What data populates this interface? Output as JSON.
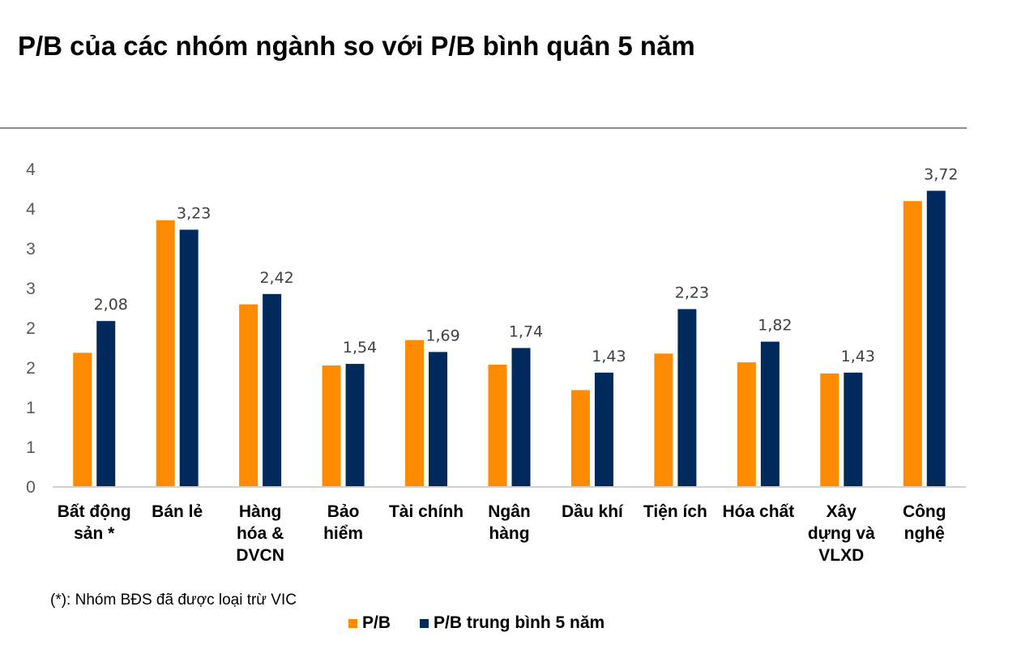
{
  "title": "P/B của các nhóm ngành so với P/B bình quân 5 năm",
  "note": "(*): Nhóm BĐS đã được loại trừ VIC",
  "colors": {
    "pb": "#FF8C00",
    "pb_avg": "#002A5C"
  },
  "chart_data": {
    "type": "bar",
    "title": "P/B của các nhóm ngành so với P/B bình quân 5 năm",
    "categories": [
      [
        "Bất động",
        "sản *"
      ],
      [
        "Bán lẻ"
      ],
      [
        "Hàng",
        "hóa &",
        "DVCN"
      ],
      [
        "Bảo",
        "hiểm"
      ],
      [
        "Tài chính"
      ],
      [
        "Ngân",
        "hàng"
      ],
      [
        "Dầu khí"
      ],
      [
        "Tiện ích"
      ],
      [
        "Hóa chất"
      ],
      [
        "Xây",
        "dựng và",
        "VLXD"
      ],
      [
        "Công",
        "nghệ"
      ]
    ],
    "series": [
      {
        "name": "P/B",
        "values": [
          1.68,
          3.35,
          2.29,
          1.52,
          1.84,
          1.53,
          1.21,
          1.67,
          1.56,
          1.42,
          3.59
        ],
        "data_labels": false
      },
      {
        "name": "P/B trung bình 5 năm",
        "values": [
          2.08,
          3.23,
          2.42,
          1.54,
          1.69,
          1.74,
          1.43,
          2.23,
          1.82,
          1.43,
          3.72
        ],
        "data_labels": [
          "2,08",
          "3,23",
          "2,42",
          "1,54",
          "1,69",
          "1,74",
          "1,43",
          "2,23",
          "1,82",
          "1,43",
          "3,72"
        ]
      }
    ],
    "ylim": [
      0,
      4
    ],
    "yticks": [
      0,
      0.5,
      1,
      1.5,
      2,
      2.5,
      3,
      3.5,
      4
    ],
    "ytick_labels": [
      "0",
      "1",
      "1",
      "2",
      "2",
      "3",
      "3",
      "4",
      "4"
    ],
    "grid": false,
    "legend": "bottom"
  }
}
